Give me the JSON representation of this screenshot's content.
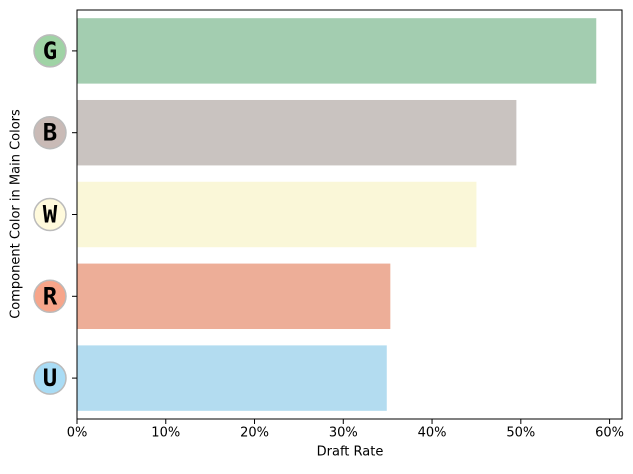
{
  "chart_data": {
    "type": "barh",
    "xlabel": "Draft Rate",
    "ylabel": "Component Color in Main Colors",
    "categories": [
      "G",
      "B",
      "W",
      "R",
      "U"
    ],
    "values": [
      58.5,
      49.5,
      45.0,
      35.3,
      34.9
    ],
    "colors": [
      "#a3cdb0",
      "#c9c3c0",
      "#faf7d8",
      "#edae98",
      "#b3dcf0"
    ],
    "icon_colors": [
      "#9fd3a5",
      "#c9bab6",
      "#fffadc",
      "#f7a58a",
      "#a9dcf5"
    ],
    "xlim": [
      0,
      61.4
    ],
    "xticks": [
      {
        "value": 0,
        "label": "0%"
      },
      {
        "value": 10,
        "label": "10%"
      },
      {
        "value": 20,
        "label": "20%"
      },
      {
        "value": 30,
        "label": "30%"
      },
      {
        "value": 40,
        "label": "40%"
      },
      {
        "value": 50,
        "label": "50%"
      },
      {
        "value": 60,
        "label": "60%"
      }
    ]
  }
}
